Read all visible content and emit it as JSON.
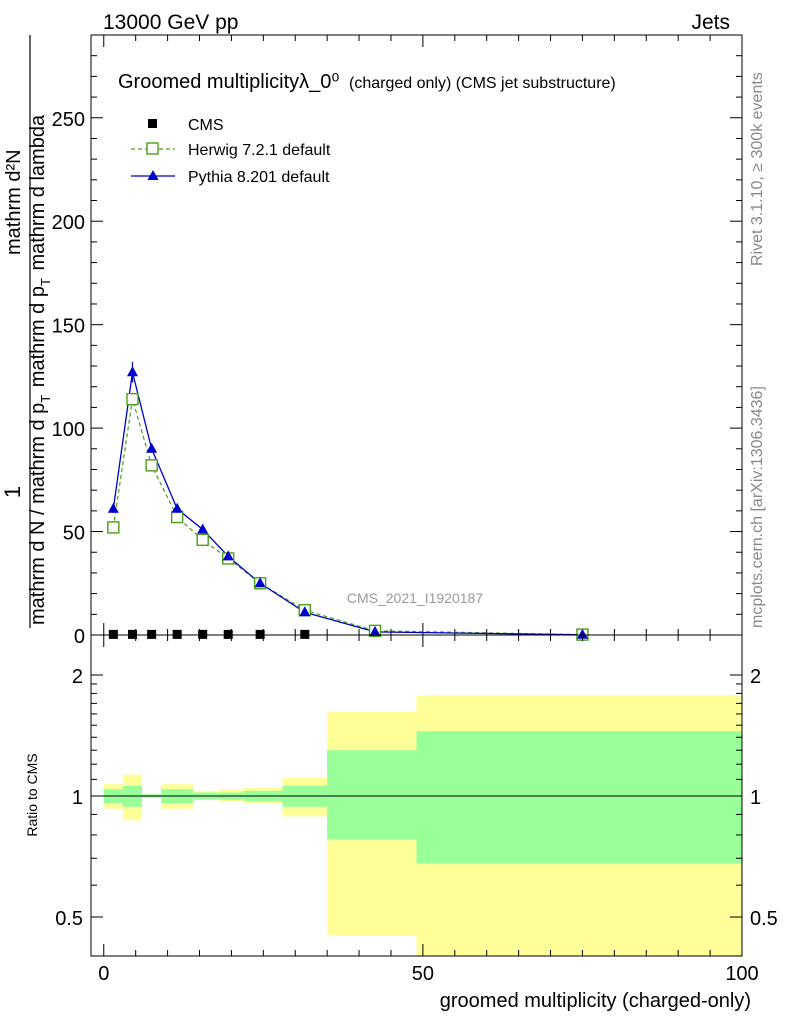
{
  "header": {
    "left": "13000 GeV pp",
    "right": "Jets"
  },
  "side_text": {
    "rivet": "Rivet 3.1.10, ≥ 300k events",
    "mcplots": "mcplots.cern.ch [arXiv:1306.3436]"
  },
  "chart_data": [
    {
      "type": "line",
      "title": "Groomed multiplicityλ_0⁰",
      "title_suffix": "(charged only) (CMS jet substructure)",
      "ylabel": {
        "fraction_num": "1",
        "frac_den": "mathrm d N / mathrm d p",
        "frac_den_sub": "T",
        "main_num": "mathrm d²N",
        "main_den": "mathrm d p",
        "main_den_sub": "T",
        "main_den_tail": "mathrm d lambda"
      },
      "watermark": "CMS_2021_I1920187",
      "xlim": [
        -2,
        100
      ],
      "ylim": [
        0,
        290
      ],
      "yticks": [
        0,
        50,
        100,
        150,
        200,
        250
      ],
      "legend_position": "top-left",
      "series": [
        {
          "name": "CMS",
          "style": "square",
          "color": "#000000",
          "x": [
            1.5,
            4.5,
            7.5,
            11.5,
            15.5,
            19.5,
            24.5,
            31.5
          ],
          "y": [
            0.3,
            0.3,
            0.3,
            0.3,
            0.3,
            0.3,
            0.3,
            0.3
          ]
        },
        {
          "name": "Herwig 7.2.1 default",
          "style": "open-square-dashed",
          "color": "#4a9e1a",
          "x": [
            1.5,
            4.5,
            7.5,
            11.5,
            15.5,
            19.5,
            24.5,
            31.5,
            42.5,
            75
          ],
          "y": [
            52,
            114,
            82,
            57,
            46,
            37,
            25,
            12,
            2,
            0.2
          ]
        },
        {
          "name": "Pythia 8.201 default",
          "style": "triangle-solid",
          "color": "#0000cc",
          "x": [
            1.5,
            4.5,
            7.5,
            11.5,
            15.5,
            19.5,
            24.5,
            31.5,
            42.5,
            75
          ],
          "y": [
            61,
            127,
            90,
            61,
            51,
            38,
            25,
            11,
            1.5,
            0.1
          ],
          "yerr": [
            2,
            5,
            2,
            2,
            1.5,
            1,
            1,
            0.5,
            0.2,
            0.1
          ]
        }
      ]
    },
    {
      "type": "area",
      "ylabel": "Ratio to CMS",
      "xlabel": "groomed multiplicity (charged-only)",
      "xlim": [
        -2,
        100
      ],
      "ylim": [
        0.35,
        2.3
      ],
      "yticks": [
        0.5,
        1,
        2
      ],
      "xticks": [
        0,
        50,
        100
      ],
      "reference_line": 1,
      "bands": {
        "edges": [
          0,
          3,
          6,
          9,
          14,
          18,
          22,
          28,
          35,
          49,
          100
        ],
        "inner_lo": [
          0.96,
          0.94,
          0.99,
          0.96,
          0.98,
          0.98,
          0.97,
          0.94,
          0.78,
          0.68
        ],
        "inner_hi": [
          1.04,
          1.06,
          1.01,
          1.04,
          1.02,
          1.02,
          1.03,
          1.06,
          1.3,
          1.45
        ],
        "outer_lo": [
          0.93,
          0.87,
          0.99,
          0.93,
          0.98,
          0.97,
          0.96,
          0.89,
          0.45,
          0.33
        ],
        "outer_hi": [
          1.07,
          1.13,
          1.01,
          1.07,
          1.03,
          1.04,
          1.05,
          1.11,
          1.62,
          1.78
        ],
        "inner_color": "#99ff99",
        "outer_color": "#ffff99"
      }
    }
  ]
}
